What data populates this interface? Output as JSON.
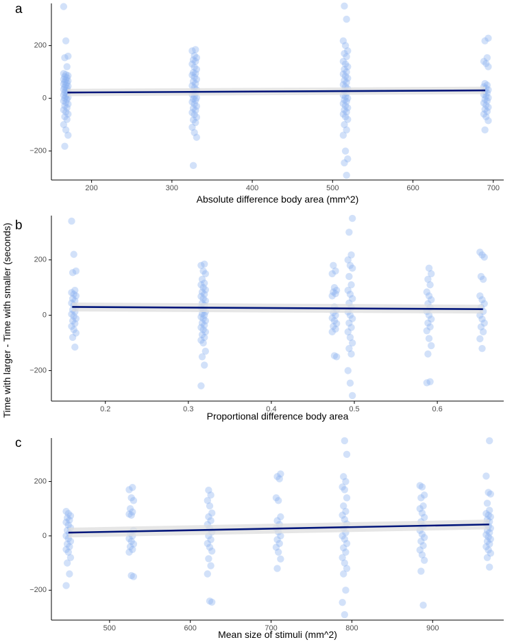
{
  "figure": {
    "ylabel": "Time with larger - Time with smaller (seconds)"
  },
  "colors": {
    "point": "#8ab0ef",
    "line": "#00157a",
    "ribbon": "#dddddd",
    "axis": "#000000",
    "tick_text": "#4d4d4d"
  },
  "chart_data": [
    {
      "panel": "a",
      "type": "scatter",
      "xlabel": "Absolute difference body area (mm^2)",
      "ylabel": "Time with larger - Time with smaller (seconds)",
      "xlim": [
        150,
        713
      ],
      "ylim": [
        -310,
        360
      ],
      "xticks": [
        200,
        300,
        400,
        500,
        600,
        700
      ],
      "yticks": [
        -200,
        0,
        200
      ],
      "regression": {
        "x0": 170,
        "y0": 22,
        "x1": 690,
        "y1": 30,
        "ci": 14
      },
      "groups": [
        {
          "x": 168,
          "values": [
            348,
            218,
            160,
            154,
            120,
            94,
            90,
            86,
            82,
            78,
            72,
            70,
            66,
            62,
            58,
            54,
            50,
            46,
            42,
            38,
            34,
            30,
            26,
            22,
            18,
            12,
            8,
            4,
            0,
            -4,
            -10,
            -16,
            -22,
            -28,
            -36,
            -44,
            -52,
            -60,
            -70,
            -80,
            -100,
            -120,
            -140,
            -182
          ]
        },
        {
          "x": 328,
          "values": [
            185,
            180,
            162,
            154,
            146,
            140,
            130,
            118,
            110,
            98,
            94,
            88,
            80,
            72,
            64,
            56,
            48,
            40,
            32,
            26,
            20,
            14,
            8,
            2,
            -2,
            -8,
            -14,
            -22,
            -30,
            -38,
            -46,
            -54,
            -62,
            -72,
            -82,
            -92,
            -110,
            -130,
            -148,
            -255
          ]
        },
        {
          "x": 516,
          "values": [
            350,
            300,
            218,
            200,
            180,
            170,
            158,
            140,
            130,
            120,
            110,
            100,
            92,
            84,
            76,
            68,
            60,
            52,
            44,
            36,
            28,
            20,
            12,
            6,
            0,
            -6,
            -12,
            -20,
            -28,
            -36,
            -44,
            -52,
            -60,
            -70,
            -80,
            -100,
            -120,
            -140,
            -200,
            -230,
            -245,
            -292
          ]
        },
        {
          "x": 691,
          "values": [
            228,
            218,
            154,
            140,
            132,
            120,
            56,
            50,
            44,
            38,
            32,
            26,
            20,
            14,
            8,
            2,
            -4,
            -10,
            -18,
            -26,
            -34,
            -42,
            -50,
            -60,
            -70,
            -85,
            -120
          ]
        }
      ]
    },
    {
      "panel": "b",
      "type": "scatter",
      "xlabel": "Proportional difference body area",
      "ylabel": "Time with larger - Time with smaller (seconds)",
      "xlim": [
        0.135,
        0.68
      ],
      "ylim": [
        -310,
        360
      ],
      "xticks": [
        0.2,
        0.3,
        0.4,
        0.5,
        0.6
      ],
      "yticks": [
        -200,
        0,
        200
      ],
      "regression": {
        "x0": 0.16,
        "y0": 30,
        "x1": 0.655,
        "y1": 22,
        "ci": 16
      },
      "groups": [
        {
          "x": 0.162,
          "values": [
            340,
            220,
            160,
            154,
            90,
            82,
            76,
            70,
            60,
            52,
            44,
            36,
            28,
            20,
            12,
            4,
            -4,
            -12,
            -20,
            -30,
            -40,
            -52,
            -64,
            -80,
            -115
          ]
        },
        {
          "x": 0.318,
          "values": [
            185,
            180,
            160,
            150,
            130,
            116,
            110,
            100,
            92,
            84,
            76,
            68,
            60,
            52,
            44,
            36,
            28,
            20,
            12,
            6,
            0,
            -6,
            -12,
            -20,
            -28,
            -36,
            -44,
            -52,
            -60,
            -70,
            -80,
            -90,
            -100,
            -130,
            -150,
            -180,
            -255
          ]
        },
        {
          "x": 0.476,
          "values": [
            180,
            160,
            150,
            100,
            90,
            84,
            78,
            70,
            30,
            20,
            10,
            0,
            -10,
            -20,
            -30,
            -40,
            -50,
            -60,
            -146,
            -150
          ]
        },
        {
          "x": 0.495,
          "values": [
            350,
            300,
            218,
            200,
            180,
            170,
            140,
            110,
            90,
            76,
            60,
            44,
            28,
            12,
            0,
            -12,
            -28,
            -44,
            -60,
            -80,
            -100,
            -120,
            -140,
            -200,
            -245,
            -290
          ]
        },
        {
          "x": 0.59,
          "values": [
            170,
            150,
            130,
            110,
            84,
            70,
            56,
            42,
            28,
            14,
            0,
            -14,
            -28,
            -42,
            -56,
            -84,
            -110,
            -140,
            -240,
            -244
          ]
        },
        {
          "x": 0.654,
          "values": [
            228,
            218,
            210,
            140,
            130,
            70,
            56,
            42,
            28,
            14,
            0,
            -14,
            -28,
            -42,
            -60,
            -85,
            -120
          ]
        }
      ]
    },
    {
      "panel": "c",
      "type": "scatter",
      "xlabel": "Mean size of stimuli (mm^2)",
      "ylabel": "Time with larger - Time with smaller (seconds)",
      "xlim": [
        428,
        988
      ],
      "ylim": [
        -310,
        360
      ],
      "xticks": [
        500,
        600,
        700,
        800,
        900
      ],
      "yticks": [
        -200,
        0,
        200
      ],
      "regression": {
        "x0": 449,
        "y0": 12,
        "x1": 970,
        "y1": 42,
        "ci": 18
      },
      "groups": [
        {
          "x": 449,
          "values": [
            90,
            82,
            74,
            66,
            58,
            50,
            40,
            30,
            20,
            10,
            0,
            -10,
            -20,
            -30,
            -40,
            -50,
            -60,
            -80,
            -100,
            -140,
            -183
          ]
        },
        {
          "x": 527,
          "values": [
            178,
            170,
            140,
            130,
            100,
            88,
            80,
            76,
            20,
            10,
            0,
            -10,
            -20,
            -30,
            -40,
            -50,
            -60,
            -146,
            -150
          ]
        },
        {
          "x": 624,
          "values": [
            168,
            150,
            130,
            110,
            84,
            70,
            56,
            42,
            28,
            14,
            0,
            -14,
            -28,
            -42,
            -56,
            -84,
            -110,
            -140,
            -240,
            -244
          ]
        },
        {
          "x": 709,
          "values": [
            228,
            218,
            210,
            140,
            130,
            70,
            56,
            42,
            28,
            14,
            0,
            -14,
            -28,
            -42,
            -60,
            -85,
            -120
          ]
        },
        {
          "x": 791,
          "values": [
            350,
            300,
            218,
            200,
            180,
            170,
            140,
            110,
            90,
            76,
            60,
            44,
            28,
            12,
            0,
            -12,
            -28,
            -44,
            -60,
            -80,
            -100,
            -120,
            -140,
            -200,
            -245,
            -290
          ]
        },
        {
          "x": 887,
          "values": [
            185,
            180,
            150,
            140,
            110,
            100,
            84,
            68,
            52,
            36,
            20,
            6,
            -6,
            -20,
            -36,
            -52,
            -70,
            -90,
            -130,
            -255
          ]
        },
        {
          "x": 969,
          "values": [
            350,
            220,
            160,
            154,
            120,
            94,
            82,
            76,
            70,
            60,
            52,
            44,
            36,
            28,
            20,
            12,
            4,
            -4,
            -12,
            -20,
            -30,
            -40,
            -52,
            -64,
            -80,
            -115
          ]
        }
      ]
    }
  ]
}
